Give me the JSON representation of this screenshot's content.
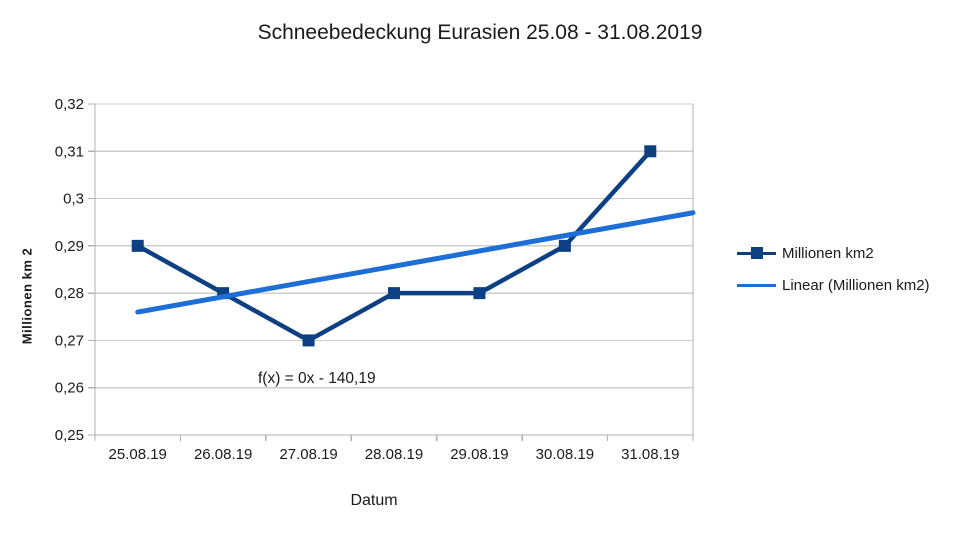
{
  "chart_data": {
    "type": "line",
    "title": "Schneebedeckung Eurasien 25.08 - 31.08.2019",
    "categories": [
      "25.08.19",
      "26.08.19",
      "27.08.19",
      "28.08.19",
      "29.08.19",
      "30.08.19",
      "31.08.19"
    ],
    "series": [
      {
        "name": "Millionen km2",
        "values": [
          0.29,
          0.28,
          0.27,
          0.28,
          0.28,
          0.29,
          0.31
        ],
        "color": "#0d3f83",
        "marker": "square"
      },
      {
        "name": "Linear (Millionen km2)",
        "role": "linear-trendline",
        "color": "#1e6ed7",
        "trend_start_value": 0.276,
        "trend_end_value": 0.297,
        "equation": "f(x) = 0x - 140,19"
      }
    ],
    "xlabel": "Datum",
    "ylabel": "Millionen km 2",
    "ylim": [
      0.25,
      0.32
    ],
    "ytick_step": 0.01,
    "ytick_labels": [
      "0,25",
      "0,26",
      "0,27",
      "0,28",
      "0,29",
      "0,3",
      "0,31",
      "0,32"
    ],
    "grid": true,
    "legend_position": "right",
    "colors": {
      "grid": "#cdcdcd",
      "axis": "#b0b0b0",
      "text": "#1a1a1a"
    }
  }
}
